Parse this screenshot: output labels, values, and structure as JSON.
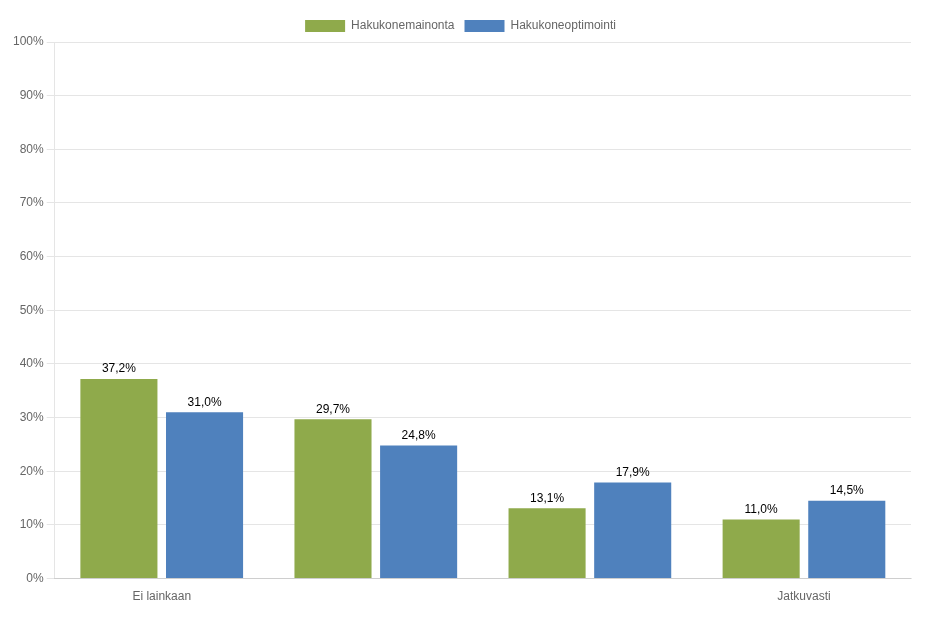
{
  "chart_data": {
    "type": "bar",
    "categories": [
      "Ei lainkaan",
      null,
      null,
      "Jatkuvasti"
    ],
    "series": [
      {
        "name": "Hakukonemainonta",
        "color": "#8faa4b",
        "values": [
          37.2,
          29.7,
          13.1,
          11.0
        ],
        "value_labels": [
          "37,2%",
          "29,7%",
          "13,1%",
          "11,0%"
        ]
      },
      {
        "name": "Hakukoneoptimointi",
        "color": "#4f81bd",
        "values": [
          31.0,
          24.8,
          17.9,
          14.5
        ],
        "value_labels": [
          "31,0%",
          "24,8%",
          "17,9%",
          "14,5%"
        ]
      }
    ],
    "ylim": [
      0,
      100
    ],
    "yticks": [
      {
        "value": 0,
        "label": "0%"
      },
      {
        "value": 10,
        "label": "10%"
      },
      {
        "value": 20,
        "label": "20%"
      },
      {
        "value": 30,
        "label": "30%"
      },
      {
        "value": 40,
        "label": "40%"
      },
      {
        "value": 50,
        "label": "50%"
      },
      {
        "value": 60,
        "label": "60%"
      },
      {
        "value": 70,
        "label": "70%"
      },
      {
        "value": 80,
        "label": "80%"
      },
      {
        "value": 90,
        "label": "90%"
      },
      {
        "value": 100,
        "label": "100%"
      }
    ],
    "grid": true,
    "legend": "top",
    "data_labels": true
  }
}
